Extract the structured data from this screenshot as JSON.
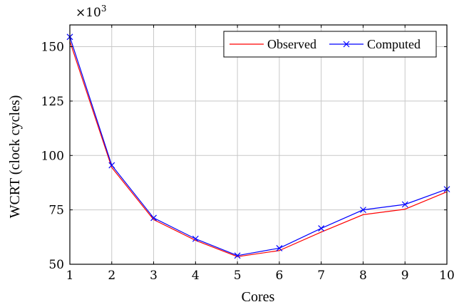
{
  "chart_data": {
    "type": "line",
    "title": "",
    "xlabel": "Cores",
    "ylabel": "WCRT (clock cycles)",
    "y_scale_label": "×10",
    "y_scale_exp": "3",
    "xlim": [
      1,
      10
    ],
    "ylim": [
      50,
      160
    ],
    "x_ticks": [
      "1",
      "2",
      "3",
      "4",
      "5",
      "6",
      "7",
      "8",
      "9",
      "10"
    ],
    "y_ticks": [
      "50",
      "75",
      "100",
      "125",
      "150"
    ],
    "x": [
      1,
      2,
      3,
      4,
      5,
      6,
      7,
      8,
      9,
      10
    ],
    "grid": true,
    "legend_position": "top-right",
    "series": [
      {
        "name": "Observed",
        "color": "#ff0000",
        "marker": "none",
        "values": [
          152.5,
          94.5,
          70.5,
          61,
          53.5,
          56.3,
          64.8,
          72.8,
          75.3,
          83.3
        ]
      },
      {
        "name": "Computed",
        "color": "#0000ff",
        "marker": "x",
        "values": [
          154.5,
          95.5,
          71.3,
          61.7,
          54,
          57.4,
          66.5,
          75,
          77.5,
          84.5
        ]
      }
    ]
  }
}
